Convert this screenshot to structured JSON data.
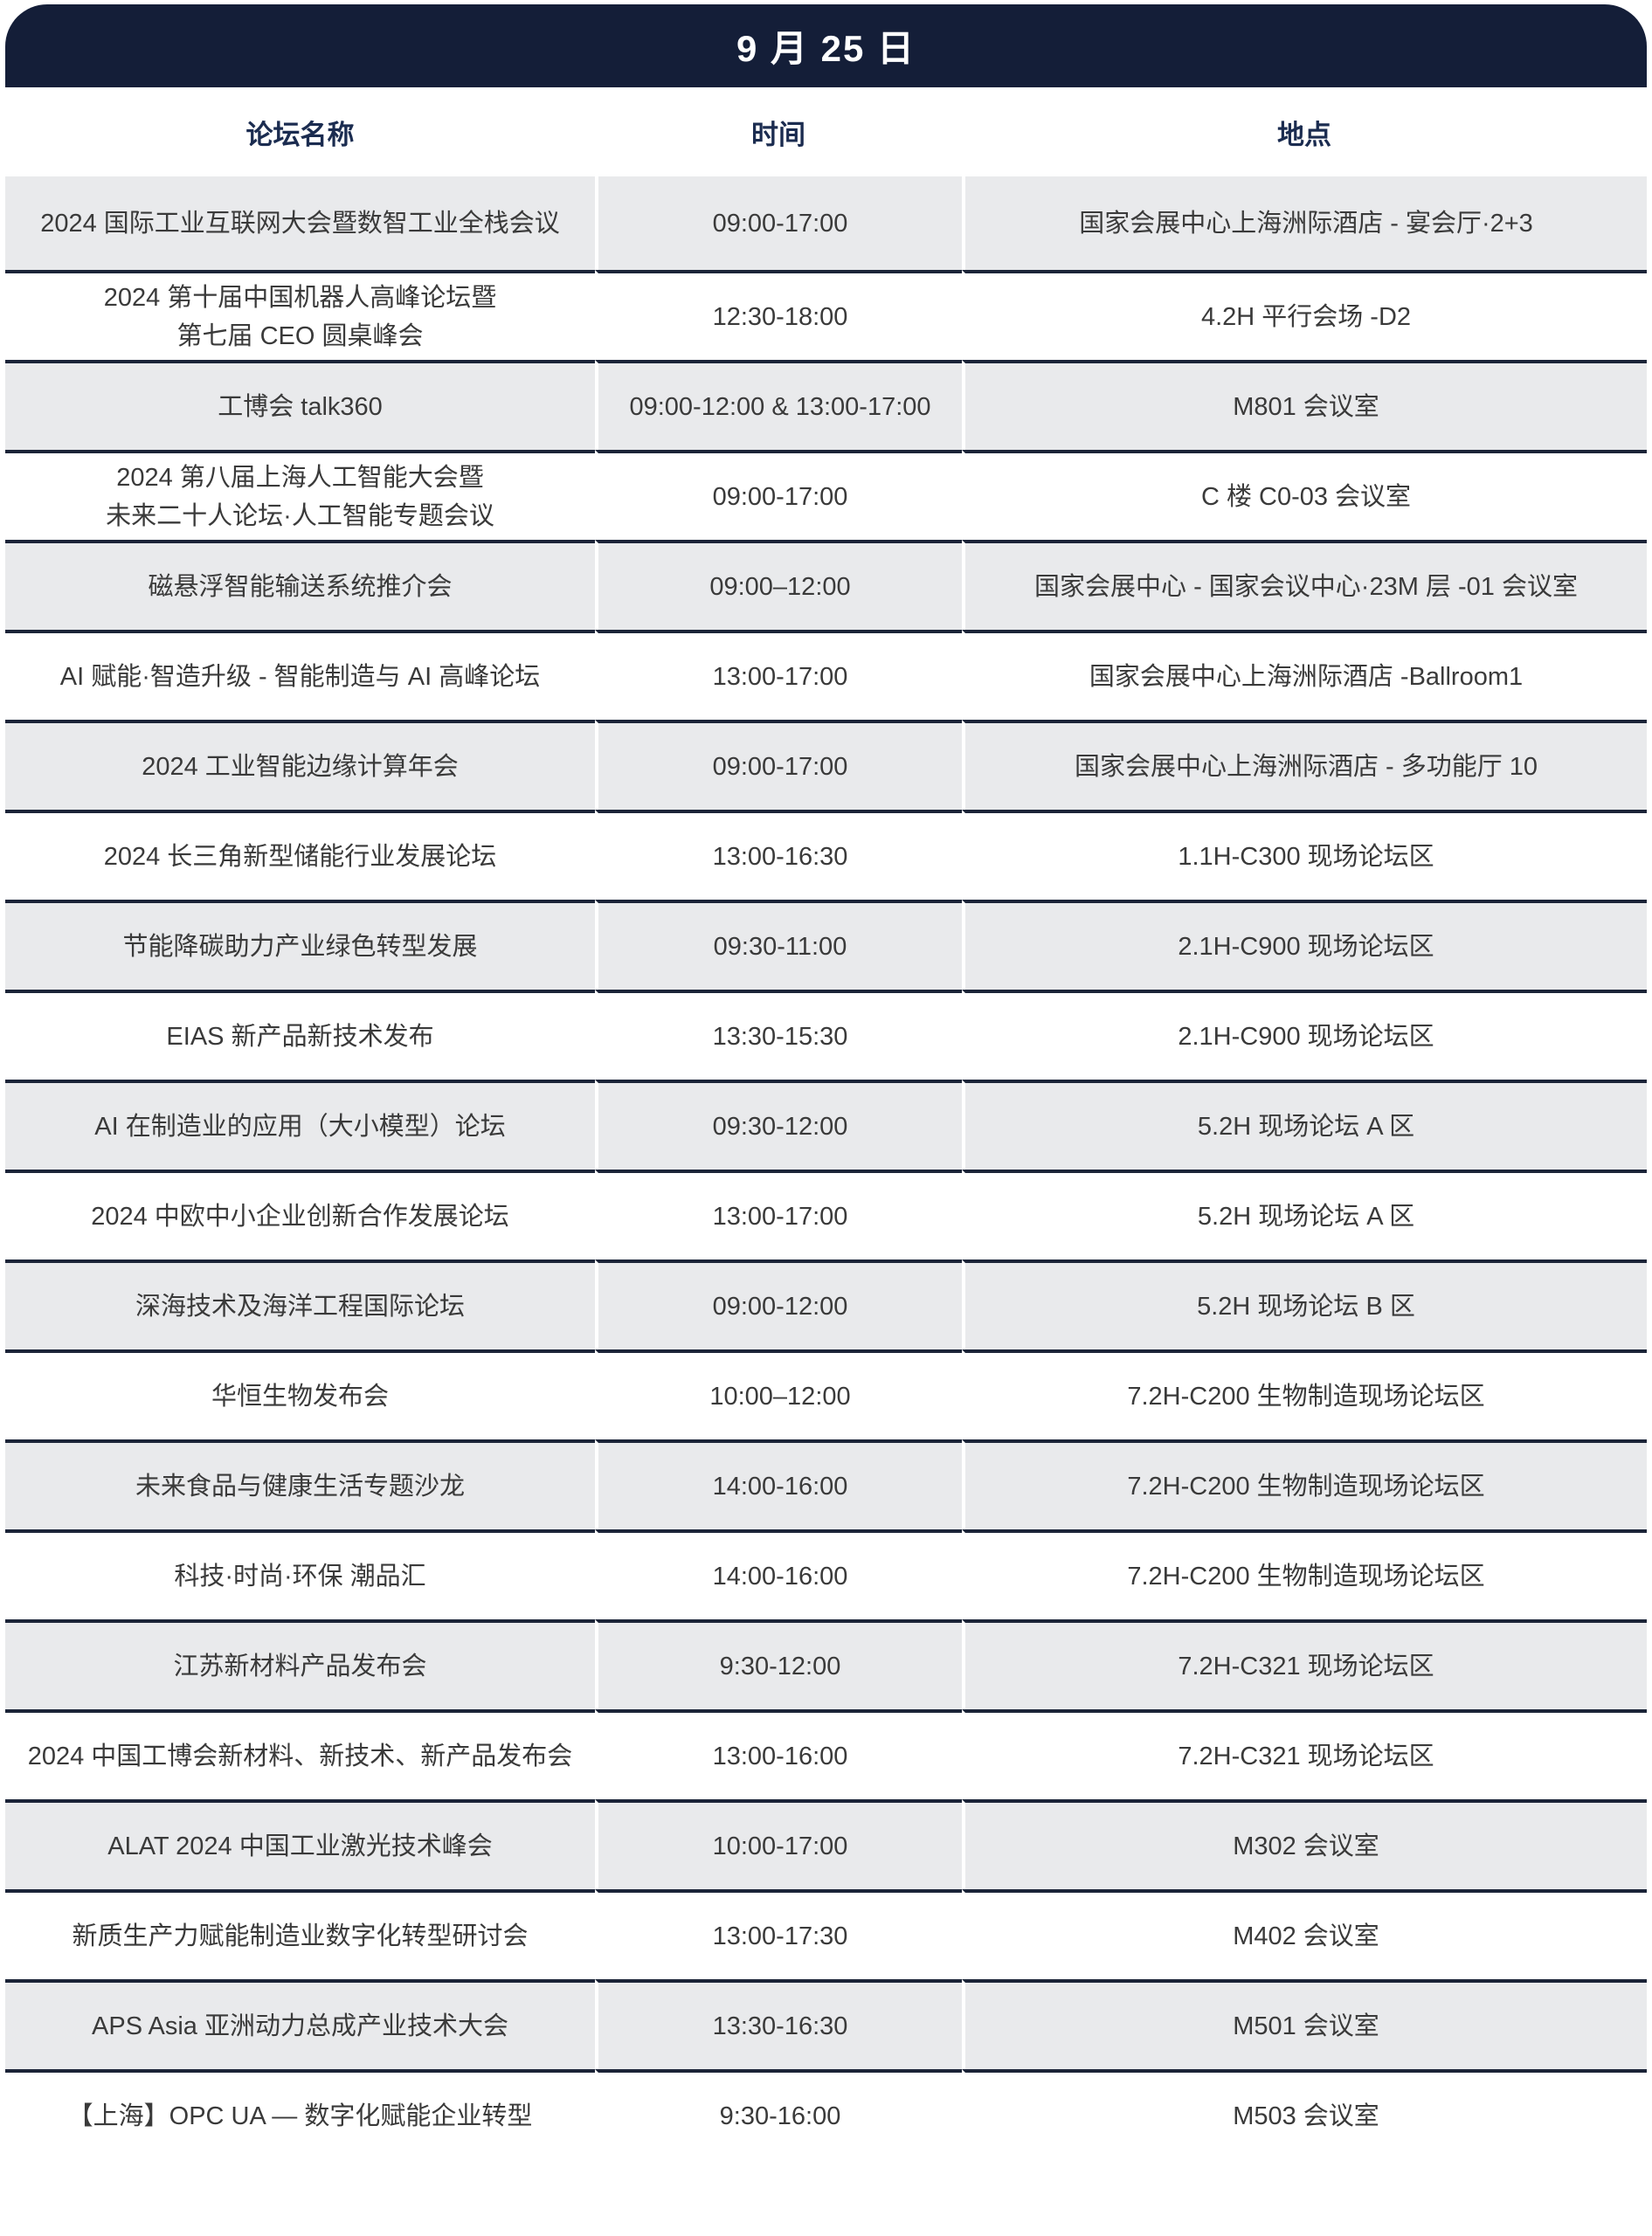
{
  "header": {
    "date_title": "9 月 25 日"
  },
  "columns": {
    "forum": "论坛名称",
    "time": "时间",
    "location": "地点"
  },
  "rows": [
    {
      "name": "2024 国际工业互联网大会暨数智工业全栈会议",
      "time": "09:00-17:00",
      "location": "国家会展中心上海洲际酒店 - 宴会厅·2+3"
    },
    {
      "name": "2024 第十届中国机器人高峰论坛暨\n第七届 CEO 圆桌峰会",
      "time": "12:30-18:00",
      "location": "4.2H 平行会场 -D2"
    },
    {
      "name": "工博会 talk360",
      "time": "09:00-12:00 & 13:00-17:00",
      "location": "M801 会议室"
    },
    {
      "name": "2024 第八届上海人工智能大会暨\n未来二十人论坛·人工智能专题会议",
      "time": "09:00-17:00",
      "location": "C 楼 C0-03 会议室"
    },
    {
      "name": "磁悬浮智能输送系统推介会",
      "time": "09:00–12:00",
      "location": "国家会展中心 - 国家会议中心·23M 层 -01 会议室"
    },
    {
      "name": "AI 赋能·智造升级 - 智能制造与 AI 高峰论坛",
      "time": "13:00-17:00",
      "location": "国家会展中心上海洲际酒店 -Ballroom1"
    },
    {
      "name": "2024 工业智能边缘计算年会",
      "time": "09:00-17:00",
      "location": "国家会展中心上海洲际酒店 - 多功能厅 10"
    },
    {
      "name": "2024 长三角新型储能行业发展论坛",
      "time": "13:00-16:30",
      "location": "1.1H-C300 现场论坛区"
    },
    {
      "name": "节能降碳助力产业绿色转型发展",
      "time": "09:30-11:00",
      "location": "2.1H-C900 现场论坛区"
    },
    {
      "name": "EIAS 新产品新技术发布",
      "time": "13:30-15:30",
      "location": "2.1H-C900 现场论坛区"
    },
    {
      "name": "AI 在制造业的应用（大小模型）论坛",
      "time": "09:30-12:00",
      "location": "5.2H 现场论坛 A 区"
    },
    {
      "name": "2024 中欧中小企业创新合作发展论坛",
      "time": "13:00-17:00",
      "location": "5.2H 现场论坛 A 区"
    },
    {
      "name": "深海技术及海洋工程国际论坛",
      "time": "09:00-12:00",
      "location": "5.2H 现场论坛 B 区"
    },
    {
      "name": "华恒生物发布会",
      "time": "10:00–12:00",
      "location": "7.2H-C200 生物制造现场论坛区"
    },
    {
      "name": "未来食品与健康生活专题沙龙",
      "time": "14:00-16:00",
      "location": "7.2H-C200 生物制造现场论坛区"
    },
    {
      "name": "科技·时尚·环保 潮品汇",
      "time": "14:00-16:00",
      "location": "7.2H-C200 生物制造现场论坛区"
    },
    {
      "name": "江苏新材料产品发布会",
      "time": "9:30-12:00",
      "location": "7.2H-C321 现场论坛区"
    },
    {
      "name": "2024 中国工博会新材料、新技术、新产品发布会",
      "time": "13:00-16:00",
      "location": "7.2H-C321 现场论坛区"
    },
    {
      "name": "ALAT 2024 中国工业激光技术峰会",
      "time": "10:00-17:00",
      "location": "M302 会议室"
    },
    {
      "name": "新质生产力赋能制造业数字化转型研讨会",
      "time": "13:00-17:30",
      "location": "M402 会议室"
    },
    {
      "name": "APS Asia 亚洲动力总成产业技术大会",
      "time": "13:30-16:30",
      "location": "M501 会议室"
    },
    {
      "name": "【上海】OPC UA — 数字化赋能企业转型",
      "time": "9:30-16:00",
      "location": "M503 会议室"
    }
  ],
  "colors": {
    "banner_bg": "#141e38",
    "banner_text": "#ffffff",
    "column_header_text": "#1b2c50",
    "row_alt_bg": "#e9eaec",
    "row_bg": "#ffffff",
    "separator": "#1b2438",
    "body_text": "#3a3a3a"
  }
}
